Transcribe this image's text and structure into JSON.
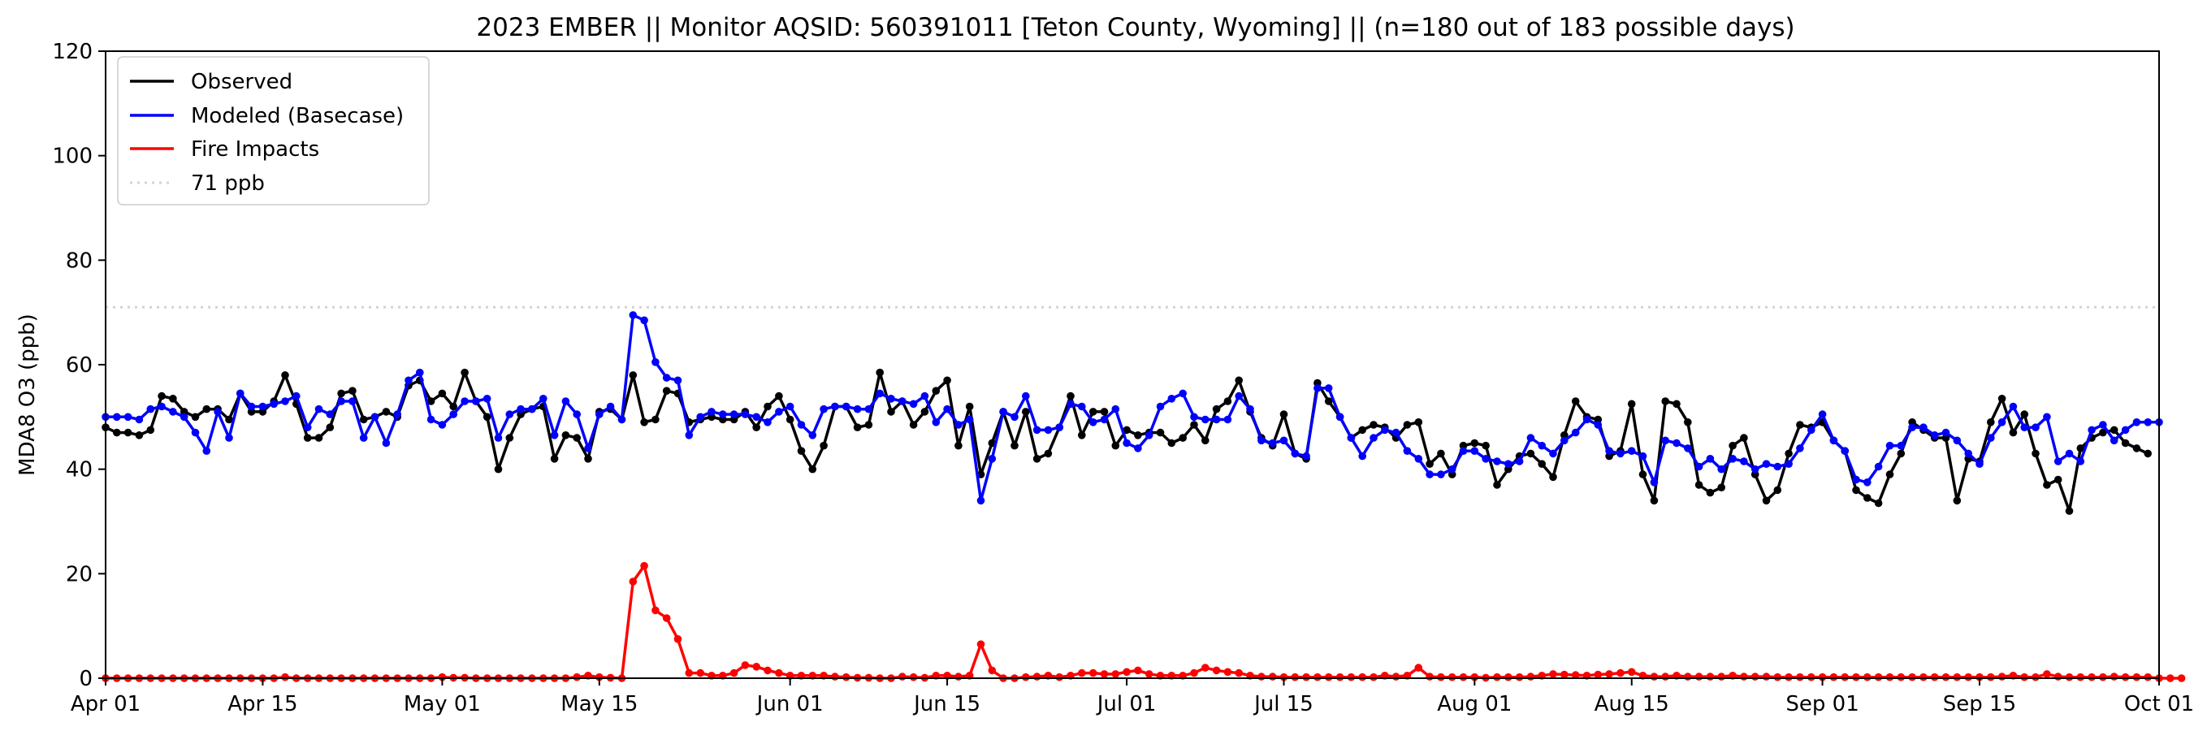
{
  "chart_data": {
    "type": "line",
    "title": "2023 EMBER || Monitor AQSID: 560391011 [Teton County, Wyoming] || (n=180 out of 183 possible days)",
    "ylabel": "MDA8 O3 (ppb)",
    "xlabel": "",
    "ylim": [
      0,
      120
    ],
    "yticks": [
      0,
      20,
      40,
      60,
      80,
      100,
      120
    ],
    "xlim_day_index": [
      0,
      183
    ],
    "xticks": [
      {
        "day": 0,
        "label": "Apr 01"
      },
      {
        "day": 14,
        "label": "Apr 15"
      },
      {
        "day": 30,
        "label": "May 01"
      },
      {
        "day": 44,
        "label": "May 15"
      },
      {
        "day": 61,
        "label": "Jun 01"
      },
      {
        "day": 75,
        "label": "Jun 15"
      },
      {
        "day": 91,
        "label": "Jul 01"
      },
      {
        "day": 105,
        "label": "Jul 15"
      },
      {
        "day": 122,
        "label": "Aug 01"
      },
      {
        "day": 136,
        "label": "Aug 15"
      },
      {
        "day": 153,
        "label": "Sep 01"
      },
      {
        "day": 167,
        "label": "Sep 15"
      },
      {
        "day": 183,
        "label": "Oct 01"
      }
    ],
    "reference_line": {
      "value": 71,
      "label": "71 ppb",
      "color": "#d3d3d3"
    },
    "legend_position": "top-left",
    "grid": false,
    "series": [
      {
        "name": "Observed",
        "color": "#000000",
        "values": [
          48,
          47,
          47,
          46.5,
          47.5,
          54,
          53.5,
          51,
          50,
          51.5,
          51.5,
          49.5,
          54.5,
          51,
          51,
          53,
          58,
          52.5,
          46,
          46,
          48,
          54.5,
          55,
          49.5,
          50,
          51,
          50,
          56,
          57,
          53,
          54.5,
          52,
          58.5,
          53,
          50,
          40,
          46,
          50.5,
          51.5,
          52,
          42,
          46.5,
          46,
          42,
          51,
          51.5,
          49.5,
          58,
          49,
          49.5,
          55,
          54.5,
          49,
          49.5,
          50,
          49.5,
          49.5,
          51,
          48,
          52,
          54,
          49.5,
          43.5,
          40,
          44.5,
          52,
          52,
          48,
          48.5,
          58.5,
          51,
          53,
          48.5,
          51,
          55,
          57,
          44.5,
          52,
          39,
          45,
          51,
          44.5,
          51,
          42,
          43,
          48,
          54,
          46.5,
          51,
          51,
          44.5,
          47.5,
          46.5,
          47,
          47,
          45,
          46,
          48.5,
          45.5,
          51.5,
          53,
          57,
          51,
          46,
          44.5,
          50.5,
          43,
          42,
          56.5,
          53,
          50,
          46,
          47.5,
          48.5,
          48,
          46,
          48.5,
          49,
          41,
          43,
          39,
          44.5,
          45,
          44.5,
          37,
          40,
          42.5,
          43,
          41,
          38.5,
          46.5,
          53,
          50,
          49.5,
          42.5,
          43.5,
          52.5,
          39,
          34,
          53,
          52.5,
          49,
          37,
          35.5,
          36.5,
          44.5,
          46,
          39,
          34,
          36,
          43,
          48.5,
          48,
          49,
          45.5,
          43.5,
          36,
          34.5,
          33.5,
          39,
          43,
          49,
          47.5,
          46,
          46,
          34,
          42,
          41.5,
          49,
          53.5,
          47,
          50.5,
          43,
          37,
          38,
          32,
          44,
          46,
          47,
          47.5,
          45,
          44,
          43
        ]
      },
      {
        "name": "Modeled (Basecase)",
        "color": "#0000ff",
        "values": [
          50,
          50,
          50,
          49.5,
          51.5,
          52,
          51,
          50,
          47,
          43.5,
          51,
          46,
          54.5,
          52,
          52,
          52.5,
          53,
          54,
          48,
          51.5,
          50.5,
          53,
          53,
          46,
          50,
          45,
          50.5,
          57,
          58.5,
          49.5,
          48.5,
          50.5,
          53,
          53,
          53.5,
          46,
          50.5,
          51.5,
          51.5,
          53.5,
          46.5,
          53,
          50.5,
          44,
          50.5,
          52,
          49.5,
          69.5,
          68.5,
          60.5,
          57.5,
          57,
          46.5,
          50,
          51,
          50.5,
          50.5,
          50.5,
          50,
          49,
          51,
          52,
          48.5,
          46.5,
          51.5,
          52,
          52,
          51.5,
          51.5,
          54.5,
          53.5,
          53,
          52.5,
          54,
          49,
          51.5,
          48.5,
          49.5,
          34,
          42,
          51,
          50,
          54,
          47.5,
          47.5,
          48,
          52.5,
          52,
          49,
          49.5,
          51.5,
          45,
          44,
          46.5,
          52,
          53.5,
          54.5,
          50,
          49.5,
          49.5,
          49.5,
          54,
          51.5,
          45.5,
          45,
          45.5,
          43,
          42.5,
          55.5,
          55.5,
          50,
          46,
          42.5,
          46,
          47.5,
          47,
          43.5,
          42,
          39,
          39,
          40,
          43.5,
          43.5,
          42,
          41.5,
          41,
          41.5,
          46,
          44.5,
          43,
          45.5,
          47,
          49.5,
          48.5,
          43.5,
          43,
          43.5,
          42.5,
          37.5,
          45.5,
          45,
          44,
          40.5,
          42,
          40,
          42,
          41.5,
          40,
          41,
          40.5,
          41,
          44,
          47.5,
          50.5,
          45.5,
          43.5,
          38,
          37.5,
          40.5,
          44.5,
          44.5,
          48,
          48,
          46.5,
          47,
          45.5,
          43,
          41,
          46,
          49,
          52,
          48,
          48,
          50,
          41.5,
          43,
          41.5,
          47.5,
          48.5,
          45.5,
          47.5,
          49,
          49,
          49
        ]
      },
      {
        "name": "Fire Impacts",
        "color": "#ff0000",
        "values": [
          0,
          0,
          0,
          0,
          0,
          0,
          0,
          0,
          0,
          0,
          0,
          0,
          0,
          0,
          0,
          0,
          0.2,
          0,
          0,
          0,
          0,
          0,
          0,
          0,
          0,
          0,
          0,
          0,
          0,
          0,
          0.2,
          0.1,
          0.1,
          0,
          0,
          0,
          0,
          0,
          0,
          0,
          0,
          0,
          0.2,
          0.5,
          0.2,
          0.1,
          0,
          18.5,
          21.5,
          13,
          11.5,
          7.5,
          1,
          1,
          0.5,
          0.5,
          1,
          2.5,
          2.2,
          1.5,
          1,
          0.5,
          0.5,
          0.5,
          0.5,
          0.3,
          0.2,
          0.1,
          0.1,
          0,
          0,
          0.3,
          0.2,
          0.1,
          0.5,
          0.5,
          0.3,
          0.5,
          6.5,
          1.5,
          0,
          0,
          0.2,
          0.3,
          0.5,
          0.2,
          0.5,
          1,
          1,
          0.8,
          0.8,
          1.2,
          1.5,
          0.8,
          0.5,
          0.5,
          0.5,
          1,
          2,
          1.5,
          1.2,
          1,
          0.5,
          0.3,
          0.3,
          0.2,
          0.2,
          0.2,
          0.2,
          0.2,
          0.2,
          0.2,
          0.2,
          0.2,
          0.5,
          0.3,
          0.5,
          2,
          0.3,
          0.2,
          0.2,
          0.2,
          0.2,
          0.1,
          0.2,
          0.2,
          0.2,
          0.3,
          0.5,
          0.8,
          0.7,
          0.6,
          0.5,
          0.7,
          0.8,
          1,
          1.2,
          0.5,
          0.3,
          0.3,
          0.5,
          0.3,
          0.3,
          0.3,
          0.3,
          0.5,
          0.3,
          0.3,
          0.3,
          0.2,
          0.2,
          0.2,
          0.2,
          0.2,
          0.2,
          0.2,
          0.2,
          0.2,
          0.2,
          0.2,
          0.2,
          0.2,
          0.2,
          0.2,
          0.2,
          0.2,
          0.2,
          0.2,
          0.2,
          0.3,
          0.5,
          0.2,
          0.2,
          0.8,
          0.3,
          0.2,
          0.2,
          0.2,
          0.2,
          0.3,
          0.2,
          0.2,
          0.2,
          0,
          0,
          0
        ]
      }
    ]
  }
}
